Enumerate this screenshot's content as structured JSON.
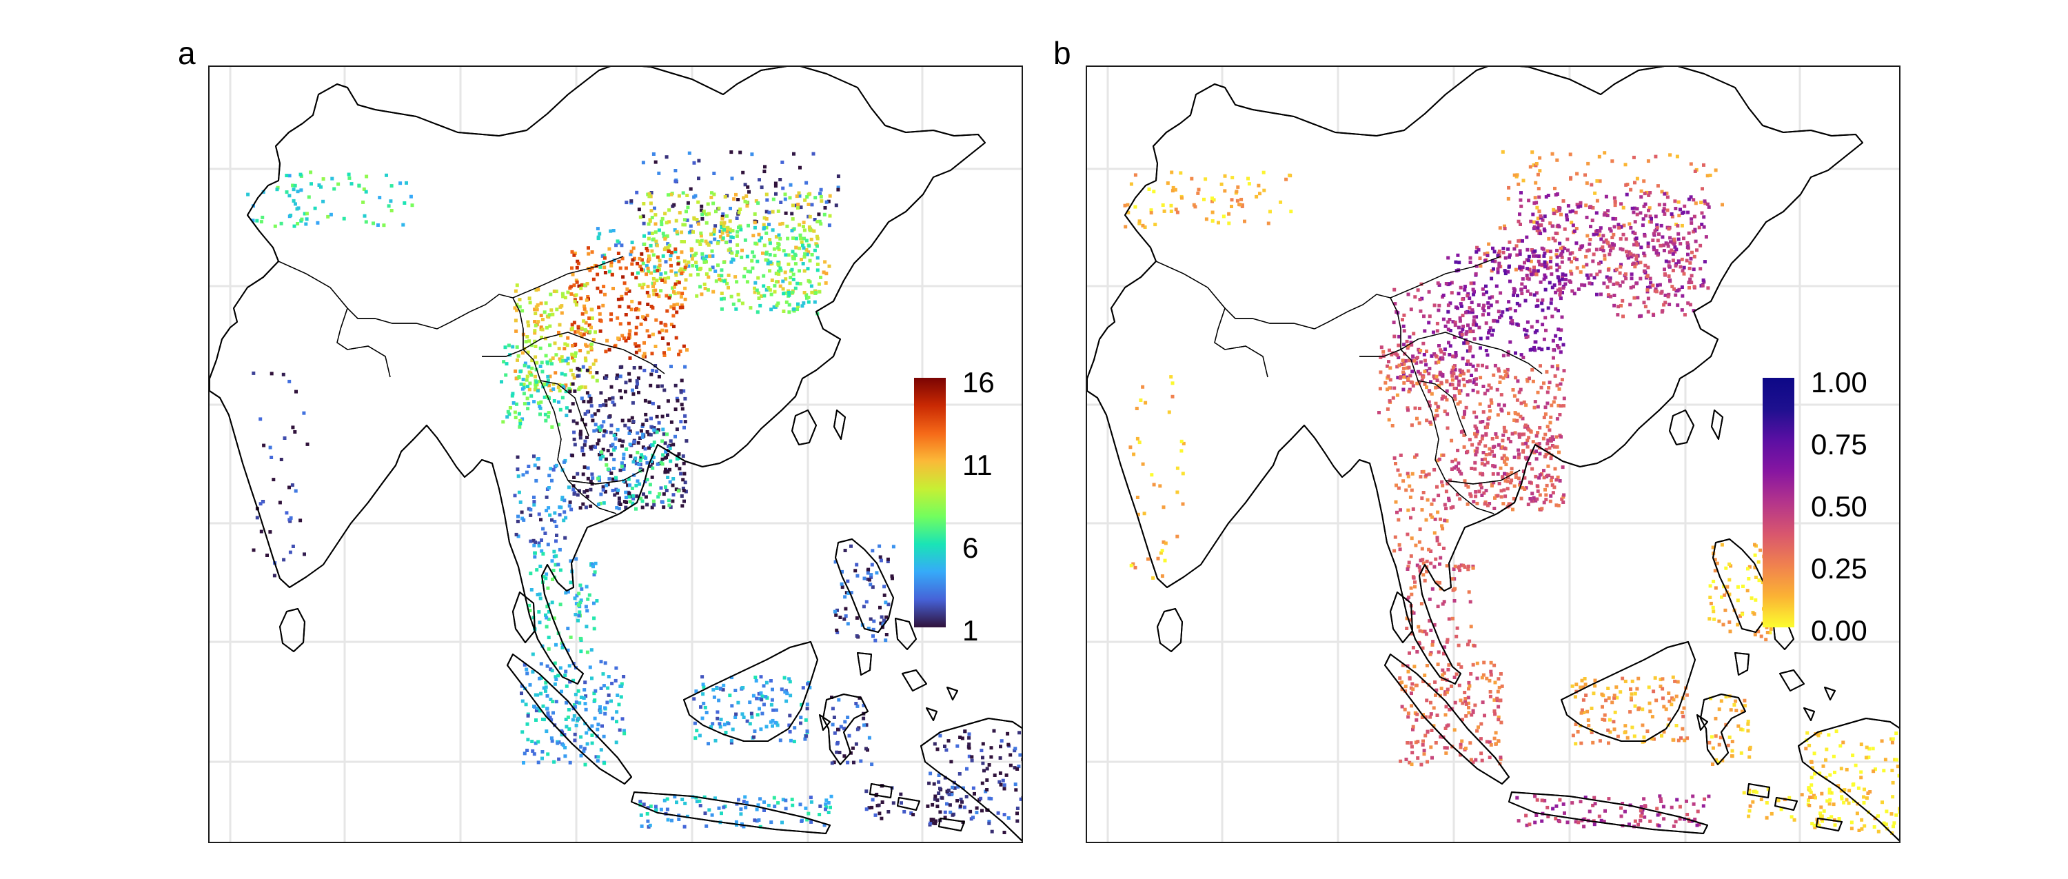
{
  "figure": {
    "panels": [
      "a",
      "b"
    ]
  },
  "panel_a": {
    "label": "a",
    "legend": {
      "ticks": [
        "16",
        "11",
        "6",
        "1"
      ],
      "min": 1,
      "max": 16,
      "colors": [
        "#30123b",
        "#4662d7",
        "#36aaf9",
        "#1ae4b6",
        "#72fe5e",
        "#c7ef34",
        "#fbb938",
        "#f56918",
        "#c92903",
        "#7a0403"
      ]
    }
  },
  "panel_b": {
    "label": "b",
    "legend": {
      "ticks": [
        "1.00",
        "0.75",
        "0.50",
        "0.25",
        "0.00"
      ],
      "min": 0,
      "max": 1,
      "colors": [
        "#fcfd2f",
        "#fbb234",
        "#f0814f",
        "#d8566e",
        "#b4358b",
        "#8716a1",
        "#5b0fa3",
        "#1e108f",
        "#0d0887"
      ]
    }
  },
  "style": {
    "land_outline": "#000000",
    "grid": "#e6e6e6",
    "frame": "#1a1a1a"
  }
}
